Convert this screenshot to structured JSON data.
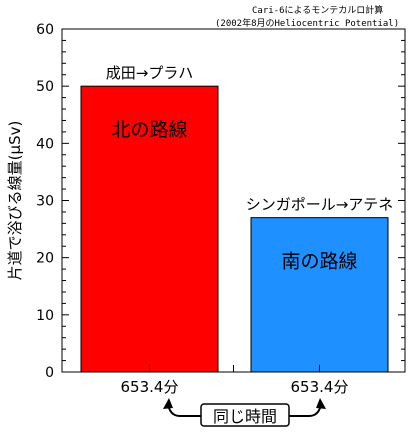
{
  "header": {
    "line1": "Cari-6によるモンテカルロ計算",
    "line2": "(2002年8月のHeliocentric Potential)"
  },
  "chart_data": {
    "type": "bar",
    "ylabel": "片道で浴びる線量(μSv)",
    "ylim": [
      0,
      60
    ],
    "yticks": [
      0,
      10,
      20,
      30,
      40,
      50,
      60
    ],
    "categories": [
      "653.4分",
      "653.4分"
    ],
    "values": [
      50,
      27
    ],
    "bar_colors": [
      "#ff0000",
      "#1e90ff"
    ],
    "route_labels": [
      "成田→プラハ",
      "シンガポール→アテネ"
    ],
    "bar_names": [
      "北の路線",
      "南の路線"
    ],
    "note": "同じ時間"
  }
}
